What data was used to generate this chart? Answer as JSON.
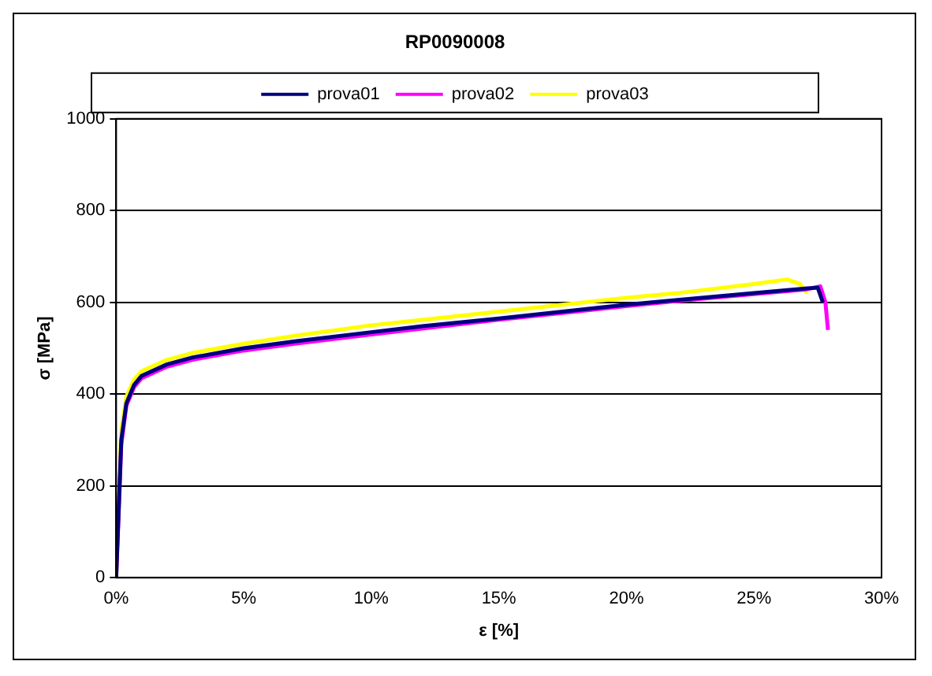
{
  "chart_data": {
    "type": "line",
    "title": "RP0090008",
    "xlabel": "ε [%]",
    "ylabel": "σ [MPa]",
    "xlim": [
      0,
      30
    ],
    "xticks": [
      {
        "value": 0,
        "label": "0%"
      },
      {
        "value": 5,
        "label": "5%"
      },
      {
        "value": 10,
        "label": "10%"
      },
      {
        "value": 15,
        "label": "15%"
      },
      {
        "value": 20,
        "label": "20%"
      },
      {
        "value": 25,
        "label": "25%"
      },
      {
        "value": 30,
        "label": "30%"
      }
    ],
    "ylim": [
      0,
      1000
    ],
    "yticks": [
      0,
      200,
      400,
      600,
      800,
      1000
    ],
    "grid": "y",
    "legend": "top",
    "marker": "none",
    "line_style": "solid",
    "series": [
      {
        "name": "prova01",
        "color": "#000080",
        "x": [
          0,
          0.1,
          0.2,
          0.4,
          0.7,
          1,
          2,
          3,
          5,
          7,
          10,
          12,
          15,
          18,
          20,
          22,
          25,
          27,
          27.5,
          27.7
        ],
        "values": [
          0,
          150,
          300,
          380,
          420,
          440,
          465,
          480,
          500,
          515,
          535,
          548,
          565,
          583,
          595,
          605,
          620,
          630,
          632,
          600
        ]
      },
      {
        "name": "prova02",
        "color": "#ff00ff",
        "x": [
          0,
          0.2,
          0.4,
          0.7,
          1,
          2,
          3,
          5,
          7,
          10,
          12,
          15,
          18,
          20,
          22,
          25,
          27,
          27.6,
          27.8,
          27.9
        ],
        "values": [
          0,
          290,
          375,
          415,
          435,
          460,
          475,
          495,
          510,
          530,
          543,
          562,
          580,
          592,
          603,
          618,
          628,
          635,
          600,
          540
        ]
      },
      {
        "name": "prova03",
        "color": "#ffff00",
        "x": [
          0,
          0.2,
          0.4,
          0.7,
          1,
          2,
          3,
          5,
          7,
          10,
          12,
          15,
          18,
          20,
          22,
          25,
          26.3,
          26.8,
          27.1
        ],
        "values": [
          0,
          320,
          395,
          432,
          450,
          475,
          490,
          510,
          527,
          550,
          562,
          580,
          598,
          610,
          620,
          640,
          650,
          640,
          620
        ]
      }
    ]
  }
}
